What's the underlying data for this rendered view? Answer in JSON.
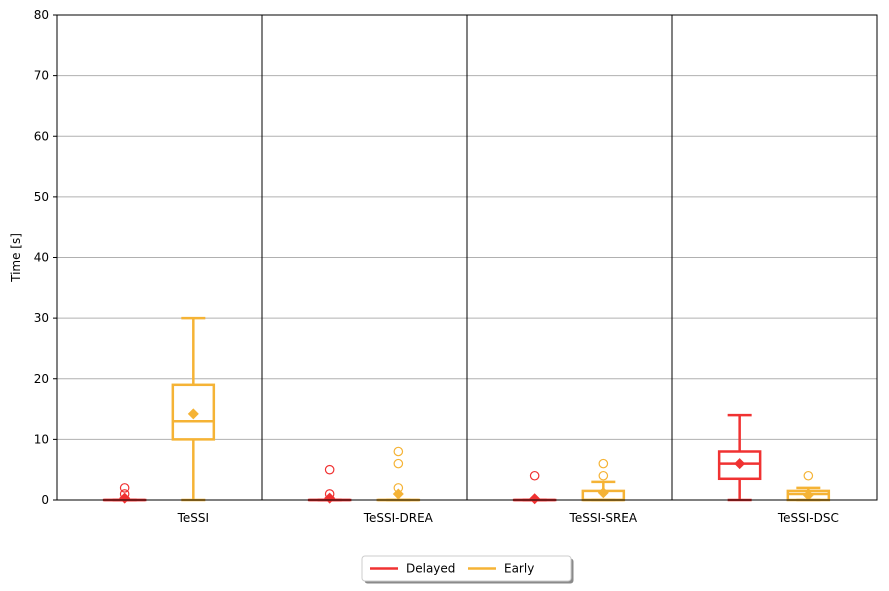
{
  "chart_data": {
    "type": "boxplot",
    "ylabel": "Time [s]",
    "ylim": [
      0,
      80
    ],
    "yticks": [
      0,
      10,
      20,
      30,
      40,
      50,
      60,
      70,
      80
    ],
    "grid": "horizontal",
    "categories": [
      "TeSSI",
      "TeSSI-DREA",
      "TeSSI-SREA",
      "TeSSI-DSC"
    ],
    "legend_position": "bottom-center",
    "colors": {
      "Delayed": "#f03232",
      "Early": "#f5b335"
    },
    "series": [
      {
        "name": "Delayed",
        "boxes": [
          {
            "category": "TeSSI",
            "whisker_low": 0,
            "q1": 0,
            "median": 0,
            "q3": 0,
            "whisker_high": 0,
            "mean": 0.3,
            "outliers": [
              1,
              2
            ]
          },
          {
            "category": "TeSSI-DREA",
            "whisker_low": 0,
            "q1": 0,
            "median": 0,
            "q3": 0,
            "whisker_high": 0,
            "mean": 0.3,
            "outliers": [
              1,
              5
            ]
          },
          {
            "category": "TeSSI-SREA",
            "whisker_low": 0,
            "q1": 0,
            "median": 0,
            "q3": 0,
            "whisker_high": 0,
            "mean": 0.2,
            "outliers": [
              4
            ]
          },
          {
            "category": "TeSSI-DSC",
            "whisker_low": 0,
            "q1": 3.5,
            "median": 6,
            "q3": 8,
            "whisker_high": 14,
            "mean": 6,
            "outliers": []
          }
        ]
      },
      {
        "name": "Early",
        "boxes": [
          {
            "category": "TeSSI",
            "whisker_low": 0,
            "q1": 10,
            "median": 13,
            "q3": 19,
            "whisker_high": 30,
            "mean": 14.2,
            "outliers": []
          },
          {
            "category": "TeSSI-DREA",
            "whisker_low": 0,
            "q1": 0,
            "median": 0,
            "q3": 0,
            "whisker_high": 0,
            "mean": 1,
            "outliers": [
              2,
              6,
              8
            ]
          },
          {
            "category": "TeSSI-SREA",
            "whisker_low": 0,
            "q1": 0,
            "median": 0,
            "q3": 1.5,
            "whisker_high": 3,
            "mean": 1.2,
            "outliers": [
              4,
              6
            ]
          },
          {
            "category": "TeSSI-DSC",
            "whisker_low": 0,
            "q1": 0,
            "median": 1,
            "q3": 1.5,
            "whisker_high": 2,
            "mean": 0.8,
            "outliers": [
              4
            ]
          }
        ]
      }
    ]
  }
}
